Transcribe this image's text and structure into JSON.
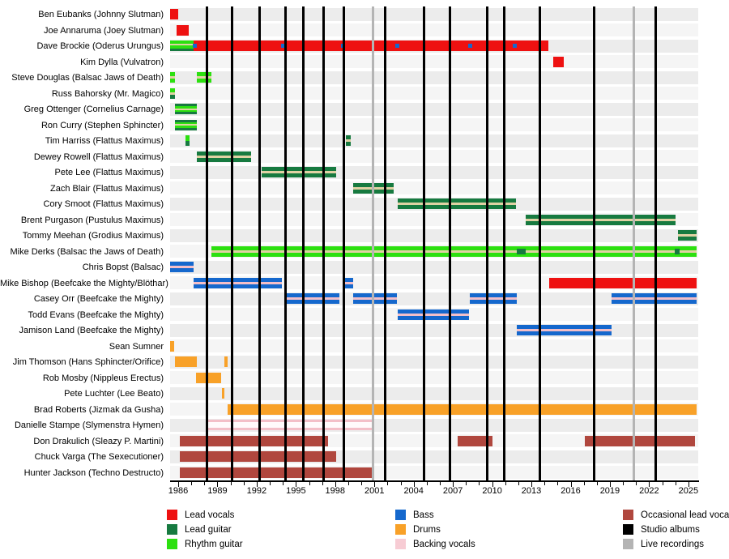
{
  "chart_data": {
    "type": "timeline",
    "description": "Band member tenure timeline (Gantt-style) with colored role bars per member, vertical lines for studio albums and live recordings",
    "colors": {
      "red": "#ee1111",
      "lead": "#177a40",
      "rhythm": "#2ce010",
      "cream": "#e0d2a4",
      "bass": "#1568cd",
      "pink": "#f3bfc8",
      "legend_pink": "#f7ccd4",
      "drums": "#f8a128",
      "occ": "#b0473e",
      "white": "#fffafb",
      "black": "#000000",
      "gray": "#b4b4b4",
      "band_even": "#ececec",
      "band_odd": "#f5f5f5"
    },
    "x_axis": {
      "tick_years_labeled": [
        1986,
        1989,
        1992,
        1995,
        1998,
        2001,
        2004,
        2007,
        2010,
        2013,
        2016,
        2019,
        2022,
        2025
      ],
      "minor_tick_every_years": 1,
      "domain_start": 1985.38,
      "domain_end": 2025.75
    },
    "albums": {
      "legend_label": "Studio albums",
      "years": [
        1988.2,
        1990.1,
        1992.2,
        1994.2,
        1995.55,
        1997.1,
        1998.65,
        2001.85,
        2004.8,
        2006.75,
        2009.65,
        2010.95,
        2013.65,
        2017.8,
        2022.5
      ]
    },
    "live_recordings": {
      "legend_label": "Live recordings",
      "years": [
        2000.9,
        2020.85
      ]
    },
    "members": [
      {
        "name": "Ben Eubanks (Johnny Slutman)",
        "bars": [
          {
            "s": 1985.38,
            "e": 1986.0,
            "p": [
              "red"
            ]
          }
        ]
      },
      {
        "name": "Joe Annaruma (Joey Slutman)",
        "bars": [
          {
            "s": 1985.9,
            "e": 1986.8,
            "p": [
              "red"
            ]
          }
        ]
      },
      {
        "name": "Dave Brockie (Oderus Urungus)",
        "bars": [
          {
            "s": 1985.38,
            "e": 1987.15,
            "p": [
              "rhythm",
              "cream",
              "rhythm",
              "lead"
            ]
          },
          {
            "s": 1987.15,
            "e": 2014.3,
            "p": [
              "red"
            ]
          }
        ],
        "markers": [
          1987.3,
          1994.0,
          1998.6,
          2002.75,
          2008.3,
          2011.7
        ]
      },
      {
        "name": "Kim Dylla (Vulvatron)",
        "bars": [
          {
            "s": 2014.65,
            "e": 2015.5,
            "p": [
              "red"
            ]
          }
        ]
      },
      {
        "name": "Steve Douglas (Balsac Jaws of Death)",
        "bars": [
          {
            "s": 1985.38,
            "e": 1985.78,
            "p": [
              "rhythm",
              "cream",
              "rhythm"
            ]
          },
          {
            "s": 1987.4,
            "e": 1988.55,
            "p": [
              "rhythm",
              "cream",
              "rhythm"
            ]
          }
        ]
      },
      {
        "name": "Russ Bahorsky (Mr. Magico)",
        "bars": [
          {
            "s": 1985.38,
            "e": 1985.78,
            "p": [
              "rhythm",
              "cream",
              "lead"
            ]
          }
        ]
      },
      {
        "name": "Greg Ottenger (Cornelius Carnage)",
        "bars": [
          {
            "s": 1985.78,
            "e": 1987.4,
            "p": [
              "lead",
              "rhythm",
              "cream",
              "rhythm",
              "lead"
            ]
          }
        ]
      },
      {
        "name": "Ron Curry (Stephen Sphincter)",
        "bars": [
          {
            "s": 1985.78,
            "e": 1987.4,
            "p": [
              "lead",
              "rhythm",
              "cream",
              "rhythm",
              "lead"
            ]
          }
        ]
      },
      {
        "name": "Tim Harriss (Flattus Maximus)",
        "bars": [
          {
            "s": 1986.55,
            "e": 1986.85,
            "p": [
              "rhythm",
              "lead"
            ]
          },
          {
            "s": 1998.8,
            "e": 1999.2,
            "p": [
              "lead",
              "cream",
              "lead"
            ]
          }
        ]
      },
      {
        "name": "Dewey Rowell (Flattus Maximus)",
        "bars": [
          {
            "s": 1987.4,
            "e": 1991.55,
            "p": [
              "lead",
              "cream",
              "lead"
            ]
          }
        ]
      },
      {
        "name": "Pete Lee (Flattus Maximus)",
        "bars": [
          {
            "s": 1992.35,
            "e": 1998.1,
            "p": [
              "lead",
              "cream",
              "lead"
            ]
          }
        ]
      },
      {
        "name": "Zach Blair (Flattus Maximus)",
        "bars": [
          {
            "s": 1999.4,
            "e": 2002.5,
            "p": [
              "lead",
              "cream",
              "lead"
            ]
          }
        ]
      },
      {
        "name": "Cory Smoot (Flattus Maximus)",
        "bars": [
          {
            "s": 2002.75,
            "e": 2011.85,
            "p": [
              "lead",
              "cream",
              "lead"
            ]
          }
        ]
      },
      {
        "name": "Brent Purgason (Pustulus Maximus)",
        "bars": [
          {
            "s": 2012.55,
            "e": 2024.0,
            "p": [
              "lead",
              "cream",
              "lead"
            ]
          }
        ]
      },
      {
        "name": "Tommy Meehan (Grodius Maximus)",
        "bars": [
          {
            "s": 2024.2,
            "e": 2025.6,
            "p": [
              "lead",
              "cream",
              "lead"
            ]
          }
        ]
      },
      {
        "name": "Mike Derks (Balsac the Jaws of Death)",
        "bars": [
          {
            "s": 1988.55,
            "e": 2025.65,
            "p": [
              "rhythm",
              "cream",
              "rhythm"
            ]
          }
        ],
        "overlays": [
          {
            "s": 2011.9,
            "e": 2012.55
          },
          {
            "s": 2023.95,
            "e": 2024.35
          }
        ]
      },
      {
        "name": "Chris Bopst (Balsac)",
        "bars": [
          {
            "s": 1985.38,
            "e": 1987.15,
            "p": [
              "bass",
              "pink",
              "bass"
            ]
          }
        ]
      },
      {
        "name": "Mike Bishop (Beefcake the Mighty/Blöthar)",
        "bars": [
          {
            "s": 1987.15,
            "e": 1993.95,
            "p": [
              "bass",
              "pink",
              "bass"
            ]
          },
          {
            "s": 1998.75,
            "e": 1999.35,
            "p": [
              "bass",
              "pink",
              "bass"
            ]
          },
          {
            "s": 2014.35,
            "e": 2025.65,
            "p": [
              "red"
            ]
          }
        ]
      },
      {
        "name": "Casey Orr (Beefcake the Mighty)",
        "bars": [
          {
            "s": 1994.2,
            "e": 1998.35,
            "p": [
              "bass",
              "pink",
              "bass"
            ]
          },
          {
            "s": 1999.35,
            "e": 2002.7,
            "p": [
              "bass",
              "pink",
              "bass"
            ]
          },
          {
            "s": 2008.3,
            "e": 2011.9,
            "p": [
              "bass",
              "pink",
              "bass"
            ]
          },
          {
            "s": 2019.1,
            "e": 2025.65,
            "p": [
              "bass",
              "pink",
              "bass"
            ]
          }
        ]
      },
      {
        "name": "Todd Evans (Beefcake the Mighty)",
        "bars": [
          {
            "s": 2002.75,
            "e": 2008.2,
            "p": [
              "bass",
              "pink",
              "bass"
            ]
          }
        ]
      },
      {
        "name": "Jamison Land (Beefcake the Mighty)",
        "bars": [
          {
            "s": 2011.9,
            "e": 2019.1,
            "p": [
              "bass",
              "pink",
              "bass"
            ]
          }
        ]
      },
      {
        "name": "Sean Sumner",
        "bars": [
          {
            "s": 1985.38,
            "e": 1985.72,
            "p": [
              "drums"
            ]
          }
        ]
      },
      {
        "name": "Jim Thomson (Hans Sphincter/Orifice)",
        "bars": [
          {
            "s": 1985.78,
            "e": 1987.45,
            "p": [
              "drums"
            ]
          },
          {
            "s": 1989.55,
            "e": 1989.75,
            "p": [
              "drums"
            ]
          }
        ]
      },
      {
        "name": "Rob Mosby (Nippleus Erectus)",
        "bars": [
          {
            "s": 1987.35,
            "e": 1989.3,
            "p": [
              "drums"
            ]
          }
        ]
      },
      {
        "name": "Pete Luchter (Lee Beato)",
        "bars": [
          {
            "s": 1989.35,
            "e": 1989.55,
            "p": [
              "drums"
            ]
          }
        ]
      },
      {
        "name": "Brad Roberts (Jizmak da Gusha)",
        "bars": [
          {
            "s": 1989.8,
            "e": 2025.65,
            "p": [
              "drums"
            ]
          }
        ]
      },
      {
        "name": "Danielle Stampe (Slymenstra Hymen)",
        "bars": [
          {
            "s": 1988.25,
            "e": 2000.95,
            "p": [
              "pink",
              "white",
              "pink"
            ],
            "w": [
              3,
              7,
              3
            ]
          }
        ]
      },
      {
        "name": "Don Drakulich (Sleazy P. Martini)",
        "bars": [
          {
            "s": 1986.1,
            "e": 1997.45,
            "p": [
              "occ"
            ]
          },
          {
            "s": 2007.35,
            "e": 2010.0,
            "p": [
              "occ"
            ]
          },
          {
            "s": 2017.1,
            "e": 2025.5,
            "p": [
              "occ"
            ]
          }
        ]
      },
      {
        "name": "Chuck Varga (The Sexecutioner)",
        "bars": [
          {
            "s": 1986.1,
            "e": 1998.1,
            "p": [
              "occ"
            ]
          }
        ]
      },
      {
        "name": "Hunter Jackson (Techno Destructo)",
        "bars": [
          {
            "s": 1986.1,
            "e": 2000.95,
            "p": [
              "occ"
            ]
          }
        ]
      }
    ],
    "legend": {
      "columns": [
        [
          {
            "label": "Lead vocals",
            "color_key": "red"
          },
          {
            "label": "Lead guitar",
            "color_key": "lead"
          },
          {
            "label": "Rhythm guitar",
            "color_key": "rhythm"
          }
        ],
        [
          {
            "label": "Bass",
            "color_key": "bass"
          },
          {
            "label": "Drums",
            "color_key": "drums"
          },
          {
            "label": "Backing vocals",
            "color_key": "legend_pink"
          }
        ],
        [
          {
            "label": "Occasional lead vocals",
            "color_key": "occ"
          },
          {
            "label": "Studio albums",
            "color_key": "black"
          },
          {
            "label": "Live recordings",
            "color_key": "gray"
          }
        ]
      ]
    }
  }
}
